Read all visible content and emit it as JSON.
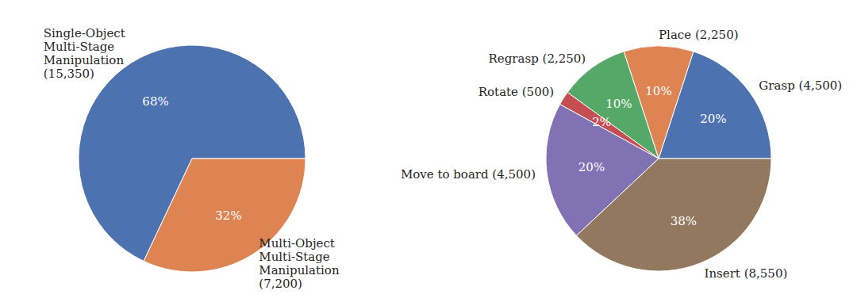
{
  "chart_data": [
    {
      "type": "pie",
      "categories": [
        "Single-Object\nMulti-Stage\nManipulation\n(15,350)",
        "Multi-Object\nMulti-Stage\nManipulation\n(7,200)"
      ],
      "values": [
        68,
        32
      ],
      "value_labels": [
        "68%",
        "32%"
      ],
      "colors": [
        "#4c72b0",
        "#dd8452"
      ],
      "data_labels": true
    },
    {
      "type": "pie",
      "categories": [
        "Grasp (4,500)",
        "Place (2,250)",
        "Regrasp (2,250)",
        "Rotate (500)",
        "Move to board (4,500)",
        "Insert (8,550)"
      ],
      "values": [
        20,
        10,
        10,
        2,
        20,
        38
      ],
      "value_labels": [
        "20%",
        "10%",
        "10%",
        "2%",
        "20%",
        "38%"
      ],
      "colors": [
        "#4c72b0",
        "#dd8452",
        "#55a868",
        "#c44e52",
        "#8172b3",
        "#937860"
      ],
      "data_labels": true
    }
  ]
}
